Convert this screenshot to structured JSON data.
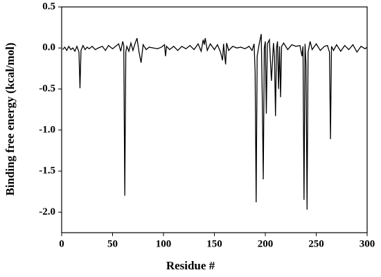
{
  "chart_data": {
    "type": "line",
    "xlabel": "Residue #",
    "ylabel": "Binding free energy (kcal/mol)",
    "x": [
      1,
      3,
      5,
      7,
      9,
      11,
      13,
      15,
      17,
      18,
      19,
      21,
      23,
      25,
      27,
      30,
      33,
      36,
      40,
      43,
      46,
      50,
      53,
      56,
      58,
      60,
      61,
      62,
      63,
      64,
      66,
      68,
      70,
      72,
      74,
      76,
      78,
      80,
      83,
      86,
      90,
      94,
      98,
      101,
      102,
      103,
      106,
      110,
      114,
      118,
      122,
      126,
      130,
      134,
      137,
      139,
      140,
      141,
      143,
      146,
      150,
      153,
      156,
      158,
      159,
      160,
      161,
      162,
      164,
      168,
      172,
      176,
      180,
      184,
      187,
      189,
      190,
      191,
      192,
      194,
      196,
      197,
      198,
      199,
      200,
      201,
      202,
      204,
      206,
      208,
      209,
      210,
      211,
      212,
      213,
      214,
      215,
      216,
      218,
      222,
      226,
      230,
      234,
      236,
      237,
      238,
      239,
      240,
      241,
      242,
      244,
      246,
      250,
      254,
      258,
      261,
      263,
      264,
      265,
      267,
      270,
      274,
      278,
      282,
      286,
      290,
      294,
      298,
      300
    ],
    "series": [
      {
        "name": "Binding free energy",
        "color": "#000000",
        "values": [
          -0.02,
          0.01,
          -0.03,
          0.02,
          -0.02,
          0.0,
          -0.04,
          0.02,
          -0.05,
          -0.49,
          -0.03,
          0.03,
          -0.02,
          0.01,
          -0.01,
          0.02,
          -0.02,
          0.0,
          0.02,
          -0.03,
          0.03,
          -0.01,
          0.02,
          0.05,
          -0.04,
          0.08,
          0.03,
          -1.8,
          -0.05,
          0.02,
          -0.04,
          0.06,
          -0.03,
          0.05,
          0.12,
          -0.05,
          -0.18,
          0.04,
          -0.02,
          0.01,
          0.0,
          -0.01,
          0.01,
          0.04,
          -0.1,
          0.02,
          -0.02,
          0.02,
          -0.03,
          0.02,
          -0.01,
          0.03,
          -0.02,
          0.05,
          -0.04,
          0.1,
          0.04,
          0.12,
          -0.03,
          0.05,
          -0.02,
          0.04,
          -0.05,
          -0.15,
          0.05,
          -0.08,
          -0.2,
          0.06,
          -0.03,
          0.02,
          0.0,
          0.01,
          -0.01,
          0.02,
          -0.03,
          0.05,
          -0.3,
          -1.88,
          -0.1,
          0.05,
          0.17,
          -0.6,
          -1.6,
          0.0,
          0.08,
          -0.8,
          0.05,
          0.1,
          -0.4,
          0.06,
          -0.1,
          -0.83,
          0.0,
          0.08,
          -0.5,
          0.02,
          -0.6,
          0.02,
          0.06,
          -0.02,
          0.04,
          0.02,
          0.03,
          -0.1,
          0.02,
          -1.85,
          0.05,
          -0.2,
          -1.97,
          -0.05,
          0.08,
          -0.02,
          0.05,
          -0.03,
          0.02,
          0.03,
          -0.05,
          -1.11,
          0.02,
          -0.03,
          0.04,
          -0.04,
          0.03,
          -0.02,
          0.04,
          -0.05,
          0.02,
          -0.01,
          0.01
        ]
      }
    ],
    "xlim": [
      0,
      300
    ],
    "xticks": [
      0,
      50,
      100,
      150,
      200,
      250,
      300
    ],
    "ylim": [
      -2.25,
      0.5
    ],
    "yticks": [
      0.5,
      {
        "value": 0,
        "label": "0.0"
      },
      -0.5,
      {
        "value": -1,
        "label": "-1.0"
      },
      -1.5,
      {
        "value": -2,
        "label": "-2.0"
      }
    ]
  }
}
